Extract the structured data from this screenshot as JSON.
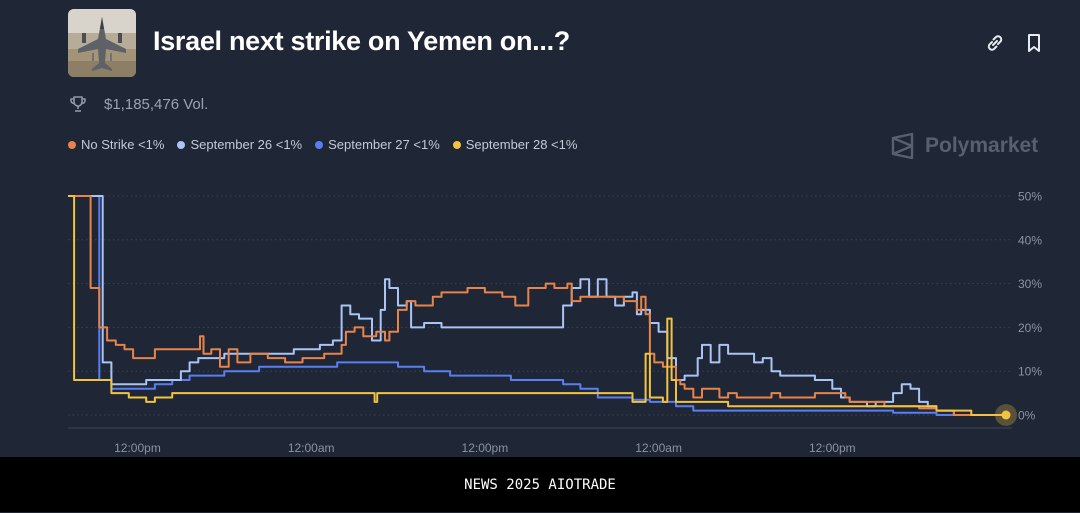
{
  "header": {
    "title": "Israel next strike on Yemen on...?",
    "volume": "$1,185,476 Vol.",
    "brand": "Polymarket"
  },
  "footer": {
    "text": "NEWS 2025 AIOTRADE"
  },
  "icons": {
    "thumbnail": "fighter-jet-image",
    "link": "link-icon",
    "bookmark": "bookmark-icon",
    "trophy": "trophy-icon",
    "logo": "polymarket-logo-icon"
  },
  "legend": [
    {
      "label": "No Strike <1%",
      "color": "#e8834a"
    },
    {
      "label": "September 26 <1%",
      "color": "#a9c4f5"
    },
    {
      "label": "September 27 <1%",
      "color": "#5a7ef0"
    },
    {
      "label": "September 28 <1%",
      "color": "#f2c341"
    }
  ],
  "chart_data": {
    "type": "line",
    "title": "Israel next strike on Yemen on...?",
    "xlabel": "",
    "ylabel": "",
    "ylim": [
      0,
      50
    ],
    "xlim": [
      0,
      108
    ],
    "grid": true,
    "yticks": [
      {
        "value": 50,
        "label": "50%"
      },
      {
        "value": 40,
        "label": "40%"
      },
      {
        "value": 30,
        "label": "30%"
      },
      {
        "value": 20,
        "label": "20%"
      },
      {
        "value": 10,
        "label": "10%"
      },
      {
        "value": 0,
        "label": "0%"
      }
    ],
    "xticks": [
      {
        "value": 8,
        "label": "12:00pm"
      },
      {
        "value": 28,
        "label": "12:00am"
      },
      {
        "value": 48,
        "label": "12:00pm"
      },
      {
        "value": 68,
        "label": "12:00am"
      },
      {
        "value": 88,
        "label": "12:00pm"
      }
    ],
    "x_unit": "hours",
    "series": [
      {
        "name": "No Strike",
        "color": "#e8834a",
        "points": [
          [
            0,
            50
          ],
          [
            1,
            50
          ],
          [
            2.3,
            50
          ],
          [
            2.6,
            29
          ],
          [
            3.2,
            29
          ],
          [
            3.6,
            20
          ],
          [
            4.5,
            17
          ],
          [
            5.5,
            16
          ],
          [
            6.5,
            15
          ],
          [
            7.5,
            13
          ],
          [
            9,
            13
          ],
          [
            10,
            15
          ],
          [
            12,
            15
          ],
          [
            14,
            15
          ],
          [
            15.2,
            18
          ],
          [
            15.6,
            14
          ],
          [
            16.5,
            15
          ],
          [
            17.5,
            11
          ],
          [
            18.5,
            15
          ],
          [
            19.5,
            12
          ],
          [
            21,
            14
          ],
          [
            23,
            13
          ],
          [
            25,
            12
          ],
          [
            27,
            13
          ],
          [
            29.5,
            14
          ],
          [
            31.5,
            16
          ],
          [
            32,
            19
          ],
          [
            33,
            20
          ],
          [
            34,
            18
          ],
          [
            35.5,
            19
          ],
          [
            36.5,
            17
          ],
          [
            37,
            19
          ],
          [
            38,
            24
          ],
          [
            39,
            26
          ],
          [
            40,
            25
          ],
          [
            42,
            27
          ],
          [
            43,
            28
          ],
          [
            45,
            28
          ],
          [
            46,
            29
          ],
          [
            48,
            28
          ],
          [
            50,
            27
          ],
          [
            51.5,
            25
          ],
          [
            52.5,
            25
          ],
          [
            53,
            29
          ],
          [
            55,
            30
          ],
          [
            56,
            29
          ],
          [
            57.5,
            30
          ],
          [
            58,
            26
          ],
          [
            59,
            27
          ],
          [
            61,
            27
          ],
          [
            64,
            26
          ],
          [
            65.5,
            24
          ],
          [
            66,
            27
          ],
          [
            66.5,
            23
          ],
          [
            67,
            14
          ],
          [
            67.5,
            12
          ],
          [
            68.5,
            11
          ],
          [
            70,
            8
          ],
          [
            70.5,
            7
          ],
          [
            71,
            6
          ],
          [
            72,
            4
          ],
          [
            73,
            6
          ],
          [
            75,
            4
          ],
          [
            76,
            5
          ],
          [
            77,
            4
          ],
          [
            79,
            4
          ],
          [
            81,
            5
          ],
          [
            82,
            4
          ],
          [
            84,
            4
          ],
          [
            86,
            5
          ],
          [
            88,
            5
          ],
          [
            89.5,
            4
          ],
          [
            90,
            3
          ],
          [
            92,
            3
          ],
          [
            94,
            2
          ],
          [
            96,
            2
          ],
          [
            98,
            1.5
          ],
          [
            100,
            1
          ],
          [
            102,
            0
          ],
          [
            104,
            0
          ],
          [
            108,
            0
          ]
        ]
      },
      {
        "name": "September 26",
        "color": "#a9c4f5",
        "points": [
          [
            0,
            50
          ],
          [
            1.5,
            50
          ],
          [
            3.5,
            50
          ],
          [
            4,
            12
          ],
          [
            5,
            7
          ],
          [
            8,
            7
          ],
          [
            9,
            8
          ],
          [
            12,
            8
          ],
          [
            13,
            10
          ],
          [
            14,
            12
          ],
          [
            15,
            13
          ],
          [
            18,
            14
          ],
          [
            22,
            14
          ],
          [
            26,
            15
          ],
          [
            29,
            16
          ],
          [
            30.5,
            17
          ],
          [
            31.5,
            25
          ],
          [
            32.5,
            23
          ],
          [
            33.5,
            22
          ],
          [
            35,
            17
          ],
          [
            36,
            24
          ],
          [
            36.5,
            31
          ],
          [
            37,
            29
          ],
          [
            38,
            25
          ],
          [
            39,
            26
          ],
          [
            39.5,
            20
          ],
          [
            41,
            21
          ],
          [
            43,
            20
          ],
          [
            48,
            20
          ],
          [
            53,
            20
          ],
          [
            56,
            20
          ],
          [
            57,
            25
          ],
          [
            58,
            29
          ],
          [
            59,
            31
          ],
          [
            60,
            27
          ],
          [
            61,
            31
          ],
          [
            62,
            27
          ],
          [
            63,
            25
          ],
          [
            64,
            27
          ],
          [
            65,
            28
          ],
          [
            65.5,
            23
          ],
          [
            66,
            24
          ],
          [
            67,
            21
          ],
          [
            68,
            19
          ],
          [
            69,
            13
          ],
          [
            70,
            8
          ],
          [
            71,
            9
          ],
          [
            72.5,
            13
          ],
          [
            73,
            16
          ],
          [
            74,
            12
          ],
          [
            75,
            16
          ],
          [
            76,
            14
          ],
          [
            77,
            14
          ],
          [
            78,
            14
          ],
          [
            79,
            12
          ],
          [
            80,
            13
          ],
          [
            81,
            10
          ],
          [
            82,
            9
          ],
          [
            84,
            9
          ],
          [
            86,
            8
          ],
          [
            88,
            6
          ],
          [
            89,
            4
          ],
          [
            90,
            3
          ],
          [
            92,
            2
          ],
          [
            93,
            3
          ],
          [
            95,
            5
          ],
          [
            96,
            7
          ],
          [
            97,
            6
          ],
          [
            98,
            3
          ],
          [
            99,
            2
          ],
          [
            100,
            1
          ],
          [
            102,
            0
          ],
          [
            108,
            0
          ]
        ]
      },
      {
        "name": "September 27",
        "color": "#5a7ef0",
        "points": [
          [
            0,
            50
          ],
          [
            2,
            50
          ],
          [
            3.2,
            50
          ],
          [
            3.6,
            8
          ],
          [
            5,
            6
          ],
          [
            10,
            7
          ],
          [
            12,
            8
          ],
          [
            14,
            9
          ],
          [
            18,
            10
          ],
          [
            22,
            11
          ],
          [
            26,
            11
          ],
          [
            31,
            12
          ],
          [
            35,
            12
          ],
          [
            38,
            11
          ],
          [
            41,
            10
          ],
          [
            44,
            9
          ],
          [
            48,
            9
          ],
          [
            51,
            8
          ],
          [
            55,
            8
          ],
          [
            57,
            7
          ],
          [
            59,
            6
          ],
          [
            61,
            4
          ],
          [
            63,
            4
          ],
          [
            65,
            3.5
          ],
          [
            67,
            3
          ],
          [
            68,
            3
          ],
          [
            70,
            2
          ],
          [
            72,
            1
          ],
          [
            75,
            1
          ],
          [
            80,
            1
          ],
          [
            85,
            1
          ],
          [
            90,
            1
          ],
          [
            95,
            0.5
          ],
          [
            100,
            0
          ],
          [
            108,
            0
          ]
        ]
      },
      {
        "name": "September 28",
        "color": "#f2c341",
        "points": [
          [
            0,
            50
          ],
          [
            0.7,
            8
          ],
          [
            4,
            8
          ],
          [
            5,
            5
          ],
          [
            7,
            4
          ],
          [
            9,
            3
          ],
          [
            10,
            4
          ],
          [
            12,
            5
          ],
          [
            18,
            5
          ],
          [
            24,
            5
          ],
          [
            30,
            5
          ],
          [
            35,
            5
          ],
          [
            35.3,
            3
          ],
          [
            35.6,
            5
          ],
          [
            40,
            5
          ],
          [
            45,
            5
          ],
          [
            50,
            5
          ],
          [
            55,
            5
          ],
          [
            60,
            5
          ],
          [
            65,
            3
          ],
          [
            66,
            3
          ],
          [
            66.5,
            14
          ],
          [
            67,
            4
          ],
          [
            68.5,
            3
          ],
          [
            69,
            22
          ],
          [
            69.5,
            8
          ],
          [
            70,
            3
          ],
          [
            72,
            3
          ],
          [
            76,
            2
          ],
          [
            82,
            2
          ],
          [
            88,
            2
          ],
          [
            90,
            2
          ],
          [
            95,
            2
          ],
          [
            100,
            1
          ],
          [
            104,
            0
          ],
          [
            108,
            0
          ]
        ]
      }
    ],
    "end_marker_series": "September 28"
  }
}
